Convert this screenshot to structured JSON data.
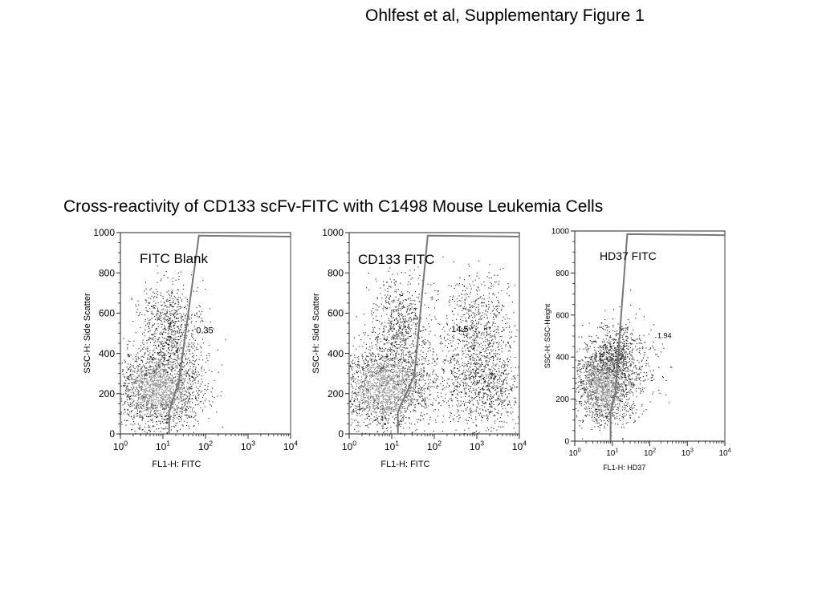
{
  "header": {
    "text": "Ohlfest et al, Supplementary Figure 1"
  },
  "caption": {
    "text": "Cross-reactivity of CD133 scFv-FITC with C1498 Mouse Leukemia Cells"
  },
  "chart_data": [
    {
      "type": "scatter",
      "title": "FITC Blank",
      "xlabel": "FL1-H: FITC",
      "ylabel": "SSC-H: Side Scatter",
      "xscale": "log",
      "xlim": [
        1,
        10000
      ],
      "ylim": [
        0,
        1000
      ],
      "x_ticks": [
        1,
        10,
        100,
        1000,
        10000
      ],
      "x_tick_labels": [
        {
          "base": "10",
          "exp": "0"
        },
        {
          "base": "10",
          "exp": "1"
        },
        {
          "base": "10",
          "exp": "2"
        },
        {
          "base": "10",
          "exp": "3"
        },
        {
          "base": "10",
          "exp": "4"
        }
      ],
      "y_ticks": [
        0,
        200,
        400,
        600,
        800,
        1000
      ],
      "y_tick_labels": [
        "0",
        "200",
        "400",
        "600",
        "800",
        "1000"
      ],
      "gate": {
        "vertices": [
          [
            14,
            0
          ],
          [
            14,
            110
          ],
          [
            24,
            270
          ],
          [
            70,
            985
          ],
          [
            10000,
            980
          ]
        ],
        "percent_label": "0.35",
        "label_at": [
          60,
          500
        ]
      },
      "populations": [
        {
          "cx": 8,
          "sx": 0.5,
          "cy": 230,
          "sy": 100,
          "n": 2200,
          "dense": true
        },
        {
          "cx": 15,
          "sx": 0.35,
          "cy": 530,
          "sy": 110,
          "n": 700
        }
      ],
      "grid": false
    },
    {
      "type": "scatter",
      "title": "CD133 FITC",
      "xlabel": "FL1-H: FITC",
      "ylabel": "SSC-H: Side Scatter",
      "xscale": "log",
      "xlim": [
        1,
        10000
      ],
      "ylim": [
        0,
        1000
      ],
      "x_ticks": [
        1,
        10,
        100,
        1000,
        10000
      ],
      "x_tick_labels": [
        {
          "base": "10",
          "exp": "0"
        },
        {
          "base": "10",
          "exp": "1"
        },
        {
          "base": "10",
          "exp": "2"
        },
        {
          "base": "10",
          "exp": "3"
        },
        {
          "base": "10",
          "exp": "4"
        }
      ],
      "y_ticks": [
        0,
        200,
        400,
        600,
        800,
        1000
      ],
      "y_tick_labels": [
        "0",
        "200",
        "400",
        "600",
        "800",
        "1000"
      ],
      "gate": {
        "vertices": [
          [
            14,
            0
          ],
          [
            14,
            110
          ],
          [
            34,
            290
          ],
          [
            70,
            985
          ],
          [
            10000,
            980
          ]
        ],
        "percent_label": "14.5",
        "label_at": [
          250,
          505
        ]
      },
      "populations": [
        {
          "cx": 7,
          "sx": 0.5,
          "cy": 230,
          "sy": 100,
          "n": 2000,
          "dense": true
        },
        {
          "cx": 15,
          "sx": 0.35,
          "cy": 550,
          "sy": 110,
          "n": 600
        },
        {
          "cx": 1500,
          "sx": 0.45,
          "cy": 260,
          "sy": 120,
          "n": 900
        },
        {
          "cx": 1200,
          "sx": 0.35,
          "cy": 560,
          "sy": 120,
          "n": 450
        },
        {
          "cx": 200,
          "sx": 0.8,
          "cy": 400,
          "sy": 200,
          "n": 400
        }
      ],
      "grid": false
    },
    {
      "type": "scatter",
      "title": "HD37 FITC",
      "xlabel": "FL1-H: HD37",
      "ylabel": "SSC-H: SSC-Height",
      "xscale": "log",
      "xlim": [
        1,
        10000
      ],
      "ylim": [
        0,
        1000
      ],
      "x_ticks": [
        1,
        10,
        100,
        1000,
        10000
      ],
      "x_tick_labels": [
        {
          "base": "10",
          "exp": "0"
        },
        {
          "base": "10",
          "exp": "1"
        },
        {
          "base": "10",
          "exp": "2"
        },
        {
          "base": "10",
          "exp": "3"
        },
        {
          "base": "10",
          "exp": "4"
        }
      ],
      "y_ticks": [
        0,
        200,
        400,
        600,
        800,
        1000
      ],
      "y_tick_labels": [
        "0",
        "200",
        "400",
        "600",
        "800",
        "1000"
      ],
      "gate": {
        "vertices": [
          [
            9,
            0
          ],
          [
            9,
            140
          ],
          [
            12,
            230
          ],
          [
            25,
            985
          ],
          [
            10000,
            980
          ]
        ],
        "percent_label": "1.94",
        "label_at": [
          160,
          490
        ]
      },
      "populations": [
        {
          "cx": 6,
          "sx": 0.38,
          "cy": 270,
          "sy": 90,
          "n": 1800,
          "dense": true
        },
        {
          "cx": 12,
          "sx": 0.3,
          "cy": 430,
          "sy": 70,
          "n": 450
        },
        {
          "cx": 40,
          "sx": 0.4,
          "cy": 380,
          "sy": 100,
          "n": 160
        }
      ],
      "grid": false
    }
  ]
}
